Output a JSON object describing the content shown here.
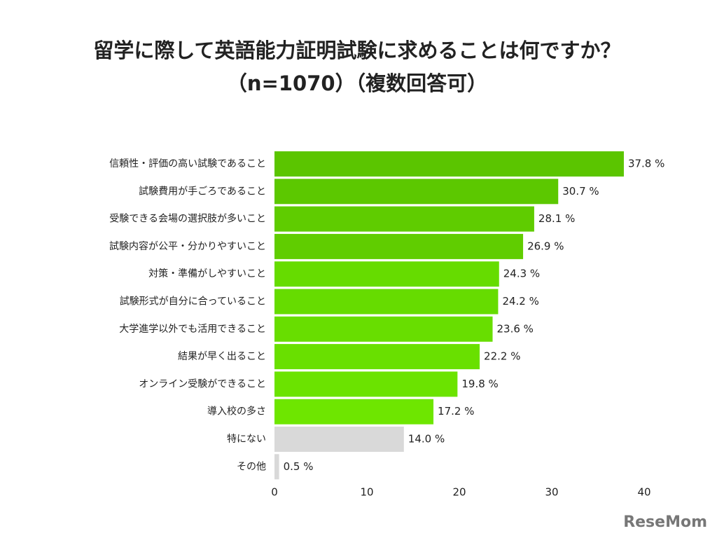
{
  "chart_data": {
    "type": "barh",
    "title": [
      "留学に際して英語能力証明試験に求めることは何ですか？",
      "（n=1070）（複数回答可）"
    ],
    "categories": [
      "信頼性・評価の高い試験であること",
      "試験費用が手ごろであること",
      "受験できる会場の選択肢が多いこと",
      "試験内容が公平・分かりやすいこと",
      "対策・準備がしやすいこと",
      "試験形式が自分に合っていること",
      "大学進学以外でも活用できること",
      "結果が早く出ること",
      "オンライン受験ができること",
      "導入校の多さ",
      "特にない",
      "その他"
    ],
    "values": [
      37.8,
      30.7,
      28.1,
      26.9,
      24.3,
      24.2,
      23.6,
      22.2,
      19.8,
      17.2,
      14.0,
      0.5
    ],
    "value_labels": [
      "37.8 %",
      "30.7 %",
      "28.1 %",
      "26.9 %",
      "24.3 %",
      "24.2 %",
      "23.6 %",
      "22.2 %",
      "19.8 %",
      "17.2 %",
      "14.0 %",
      "0.5 %"
    ],
    "colors": [
      "#5bc500",
      "#5cc800",
      "#5fcc00",
      "#60cd00",
      "#66dc00",
      "#66dc00",
      "#68de00",
      "#69e000",
      "#6be300",
      "#6ee600",
      "#d9d9d9",
      "#d9d9d9"
    ],
    "xlim": [
      0,
      40
    ],
    "xticks": [
      0,
      10,
      20,
      30,
      40
    ],
    "watermark": "ReseMom"
  }
}
